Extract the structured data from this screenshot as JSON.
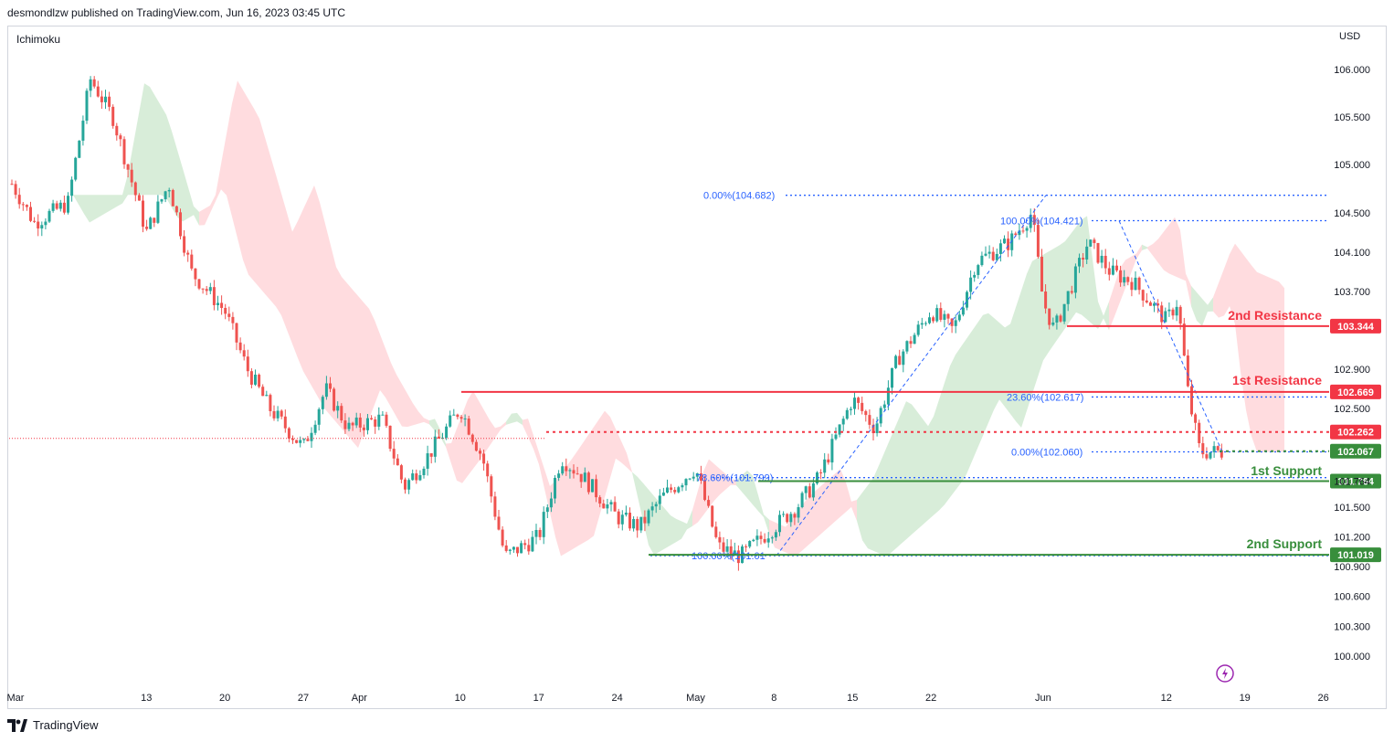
{
  "header": {
    "text": "desmondlzw published on TradingView.com, Jun 16, 2023 03:45 UTC"
  },
  "indicator": "Ichimoku",
  "currency": "USD",
  "footer": {
    "brand": "TradingView"
  },
  "colors": {
    "bull": "#26a69a",
    "bear": "#ef5350",
    "resistance": "#f23645",
    "support": "#388e3c",
    "fib": "#2962ff",
    "cloud_bull": "#c8e6c9",
    "cloud_bear": "#ffcdd2",
    "flash": "#9c27b0"
  },
  "chart_data": {
    "type": "candlestick",
    "title": "",
    "xlabel": "",
    "ylabel": "",
    "y_axis": {
      "side": "right",
      "ticks": [
        "106.000",
        "105.500",
        "105.000",
        "104.500",
        "104.100",
        "103.700",
        "102.900",
        "102.500",
        "101.764",
        "101.500",
        "101.200",
        "100.900",
        "100.600",
        "100.300",
        "100.000"
      ]
    },
    "x_axis": {
      "ticks": [
        "Mar",
        "13",
        "20",
        "27",
        "Apr",
        "10",
        "17",
        "24",
        "May",
        "8",
        "15",
        "22",
        "Jun",
        "12",
        "19",
        "26"
      ]
    },
    "price_path": [
      [
        "Mar 1",
        104.8
      ],
      [
        "Mar 3",
        104.4
      ],
      [
        "Mar 6",
        104.6
      ],
      [
        "Mar 8",
        105.9
      ],
      [
        "Mar 10",
        105.5
      ],
      [
        "Mar 13",
        104.3
      ],
      [
        "Mar 15",
        104.8
      ],
      [
        "Mar 17",
        103.9
      ],
      [
        "Mar 20",
        103.5
      ],
      [
        "Mar 22",
        102.9
      ],
      [
        "Mar 24",
        102.5
      ],
      [
        "Mar 27",
        102.1
      ],
      [
        "Mar 29",
        102.7
      ],
      [
        "Mar 31",
        102.3
      ],
      [
        "Apr 3",
        102.4
      ],
      [
        "Apr 5",
        101.7
      ],
      [
        "Apr 7",
        102.0
      ],
      [
        "Apr 10",
        102.5
      ],
      [
        "Apr 12",
        102.0
      ],
      [
        "Apr 14",
        101.0
      ],
      [
        "Apr 17",
        101.2
      ],
      [
        "Apr 19",
        102.0
      ],
      [
        "Apr 21",
        101.8
      ],
      [
        "Apr 24",
        101.4
      ],
      [
        "Apr 26",
        101.3
      ],
      [
        "Apr 28",
        101.6
      ],
      [
        "May 1",
        101.9
      ],
      [
        "May 3",
        101.1
      ],
      [
        "May 5",
        101.0
      ],
      [
        "May 8",
        101.3
      ],
      [
        "May 10",
        101.5
      ],
      [
        "May 12",
        101.8
      ],
      [
        "May 15",
        102.6
      ],
      [
        "May 17",
        102.3
      ],
      [
        "May 19",
        103.0
      ],
      [
        "May 22",
        103.5
      ],
      [
        "May 24",
        103.3
      ],
      [
        "May 26",
        104.0
      ],
      [
        "May 29",
        104.2
      ],
      [
        "May 31",
        104.5
      ],
      [
        "Jun 1",
        103.6
      ],
      [
        "Jun 2",
        103.3
      ],
      [
        "Jun 5",
        104.2
      ],
      [
        "Jun 7",
        103.9
      ],
      [
        "Jun 9",
        103.8
      ],
      [
        "Jun 12",
        103.4
      ],
      [
        "Jun 13",
        103.6
      ],
      [
        "Jun 14",
        102.6
      ],
      [
        "Jun 15",
        102.06
      ]
    ],
    "levels": [
      {
        "name": "2nd Resistance",
        "value": "103.344",
        "role": "resistance"
      },
      {
        "name": "1st Resistance",
        "value": "102.669",
        "role": "resistance"
      },
      {
        "name": "",
        "value": "102.262",
        "role": "current"
      },
      {
        "name": "",
        "value": "102.067",
        "role": "support-tag"
      },
      {
        "name": "1st Support",
        "value": "101.764",
        "role": "support"
      },
      {
        "name": "2nd Support",
        "value": "101.019",
        "role": "support"
      }
    ],
    "fib_labels": [
      {
        "text": "0.00%(104.682)",
        "value": 104.682
      },
      {
        "text": "100.00%(104.421)",
        "value": 104.421
      },
      {
        "text": "23.60%(102.617)",
        "value": 102.617
      },
      {
        "text": "0.00%(102.060)",
        "value": 102.06
      },
      {
        "text": "78.60%(101.799)",
        "value": 101.799
      },
      {
        "text": "100.00%(101.01",
        "value": 101.01
      }
    ],
    "legend": "none",
    "grid": false
  }
}
